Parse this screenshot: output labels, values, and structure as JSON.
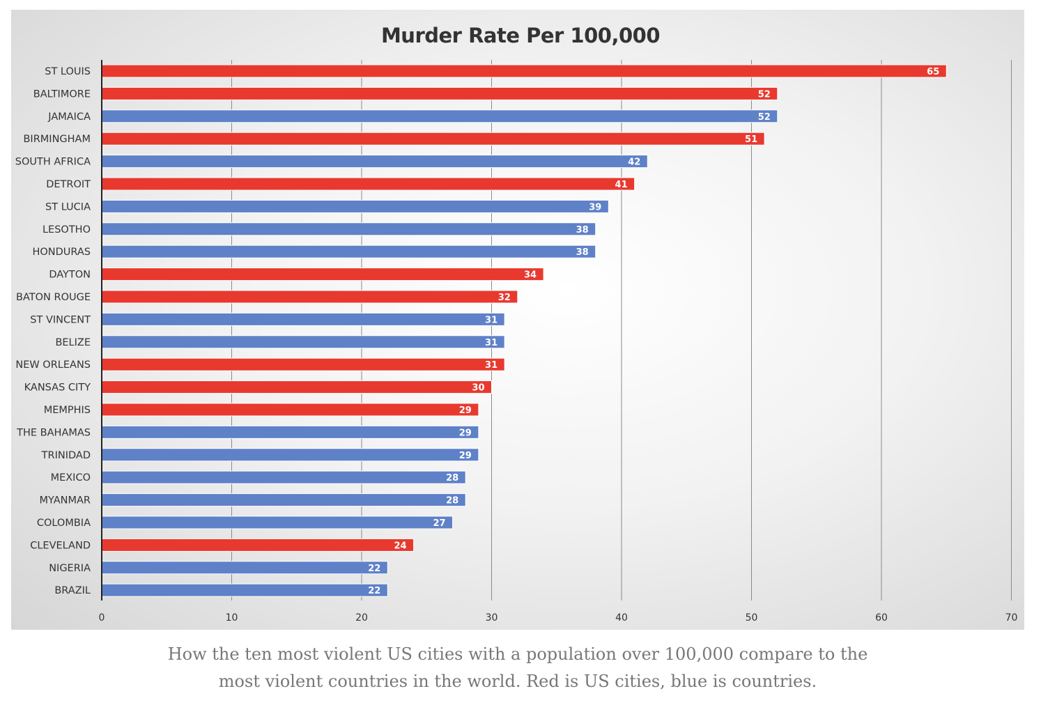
{
  "chart_data": {
    "type": "bar",
    "orientation": "horizontal",
    "title": "Murder Rate Per 100,000",
    "xlabel": "",
    "ylabel": "",
    "xlim": [
      0,
      70
    ],
    "x_ticks": [
      0,
      10,
      20,
      30,
      40,
      50,
      60,
      70
    ],
    "grid": true,
    "legend": "none",
    "categories": [
      "ST LOUIS",
      "BALTIMORE",
      "JAMAICA",
      "BIRMINGHAM",
      "SOUTH AFRICA",
      "DETROIT",
      "ST LUCIA",
      "LESOTHO",
      "HONDURAS",
      "DAYTON",
      "BATON ROUGE",
      "ST VINCENT",
      "BELIZE",
      "NEW ORLEANS",
      "KANSAS CITY",
      "MEMPHIS",
      "THE BAHAMAS",
      "TRINIDAD",
      "MEXICO",
      "MYANMAR",
      "COLOMBIA",
      "CLEVELAND",
      "NIGERIA",
      "BRAZIL"
    ],
    "values": [
      65,
      52,
      52,
      51,
      42,
      41,
      39,
      38,
      38,
      34,
      32,
      31,
      31,
      31,
      30,
      29,
      29,
      29,
      28,
      28,
      27,
      24,
      22,
      22
    ],
    "groups": [
      "city",
      "city",
      "country",
      "city",
      "country",
      "city",
      "country",
      "country",
      "country",
      "city",
      "city",
      "country",
      "country",
      "city",
      "city",
      "city",
      "country",
      "country",
      "country",
      "country",
      "country",
      "city",
      "country",
      "country"
    ],
    "colors": {
      "city": "#e8392f",
      "country": "#5f81c8"
    }
  },
  "caption": {
    "line1": "How the ten most violent US cities with a population over 100,000 compare to the",
    "line2": "most violent countries in the world. Red is US cities, blue is countries."
  }
}
